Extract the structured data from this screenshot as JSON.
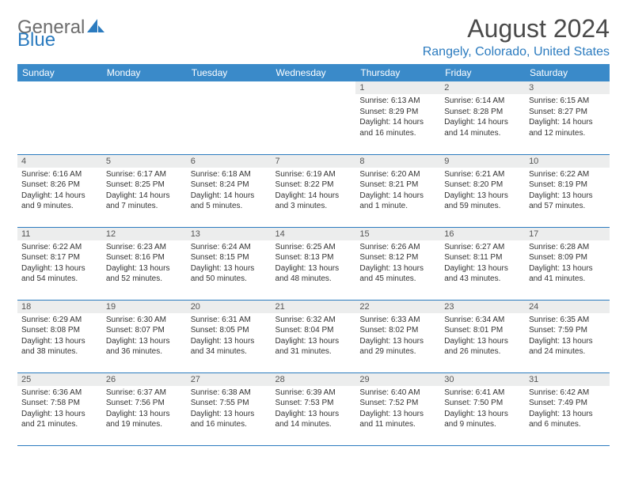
{
  "logo": {
    "line1": "General",
    "line2": "Blue"
  },
  "title": "August 2024",
  "location": "Rangely, Colorado, United States",
  "colors": {
    "header_bg": "#3a8ac9",
    "header_text": "#ffffff",
    "accent": "#2b7bbf",
    "logo_gray": "#6d6d6d",
    "daynum_bg": "#eceded",
    "body_text": "#333333",
    "title_text": "#4b4b4b"
  },
  "day_headers": [
    "Sunday",
    "Monday",
    "Tuesday",
    "Wednesday",
    "Thursday",
    "Friday",
    "Saturday"
  ],
  "weeks": [
    [
      null,
      null,
      null,
      null,
      {
        "n": "1",
        "sr": "6:13 AM",
        "ss": "8:29 PM",
        "dl": "14 hours and 16 minutes."
      },
      {
        "n": "2",
        "sr": "6:14 AM",
        "ss": "8:28 PM",
        "dl": "14 hours and 14 minutes."
      },
      {
        "n": "3",
        "sr": "6:15 AM",
        "ss": "8:27 PM",
        "dl": "14 hours and 12 minutes."
      }
    ],
    [
      {
        "n": "4",
        "sr": "6:16 AM",
        "ss": "8:26 PM",
        "dl": "14 hours and 9 minutes."
      },
      {
        "n": "5",
        "sr": "6:17 AM",
        "ss": "8:25 PM",
        "dl": "14 hours and 7 minutes."
      },
      {
        "n": "6",
        "sr": "6:18 AM",
        "ss": "8:24 PM",
        "dl": "14 hours and 5 minutes."
      },
      {
        "n": "7",
        "sr": "6:19 AM",
        "ss": "8:22 PM",
        "dl": "14 hours and 3 minutes."
      },
      {
        "n": "8",
        "sr": "6:20 AM",
        "ss": "8:21 PM",
        "dl": "14 hours and 1 minute."
      },
      {
        "n": "9",
        "sr": "6:21 AM",
        "ss": "8:20 PM",
        "dl": "13 hours and 59 minutes."
      },
      {
        "n": "10",
        "sr": "6:22 AM",
        "ss": "8:19 PM",
        "dl": "13 hours and 57 minutes."
      }
    ],
    [
      {
        "n": "11",
        "sr": "6:22 AM",
        "ss": "8:17 PM",
        "dl": "13 hours and 54 minutes."
      },
      {
        "n": "12",
        "sr": "6:23 AM",
        "ss": "8:16 PM",
        "dl": "13 hours and 52 minutes."
      },
      {
        "n": "13",
        "sr": "6:24 AM",
        "ss": "8:15 PM",
        "dl": "13 hours and 50 minutes."
      },
      {
        "n": "14",
        "sr": "6:25 AM",
        "ss": "8:13 PM",
        "dl": "13 hours and 48 minutes."
      },
      {
        "n": "15",
        "sr": "6:26 AM",
        "ss": "8:12 PM",
        "dl": "13 hours and 45 minutes."
      },
      {
        "n": "16",
        "sr": "6:27 AM",
        "ss": "8:11 PM",
        "dl": "13 hours and 43 minutes."
      },
      {
        "n": "17",
        "sr": "6:28 AM",
        "ss": "8:09 PM",
        "dl": "13 hours and 41 minutes."
      }
    ],
    [
      {
        "n": "18",
        "sr": "6:29 AM",
        "ss": "8:08 PM",
        "dl": "13 hours and 38 minutes."
      },
      {
        "n": "19",
        "sr": "6:30 AM",
        "ss": "8:07 PM",
        "dl": "13 hours and 36 minutes."
      },
      {
        "n": "20",
        "sr": "6:31 AM",
        "ss": "8:05 PM",
        "dl": "13 hours and 34 minutes."
      },
      {
        "n": "21",
        "sr": "6:32 AM",
        "ss": "8:04 PM",
        "dl": "13 hours and 31 minutes."
      },
      {
        "n": "22",
        "sr": "6:33 AM",
        "ss": "8:02 PM",
        "dl": "13 hours and 29 minutes."
      },
      {
        "n": "23",
        "sr": "6:34 AM",
        "ss": "8:01 PM",
        "dl": "13 hours and 26 minutes."
      },
      {
        "n": "24",
        "sr": "6:35 AM",
        "ss": "7:59 PM",
        "dl": "13 hours and 24 minutes."
      }
    ],
    [
      {
        "n": "25",
        "sr": "6:36 AM",
        "ss": "7:58 PM",
        "dl": "13 hours and 21 minutes."
      },
      {
        "n": "26",
        "sr": "6:37 AM",
        "ss": "7:56 PM",
        "dl": "13 hours and 19 minutes."
      },
      {
        "n": "27",
        "sr": "6:38 AM",
        "ss": "7:55 PM",
        "dl": "13 hours and 16 minutes."
      },
      {
        "n": "28",
        "sr": "6:39 AM",
        "ss": "7:53 PM",
        "dl": "13 hours and 14 minutes."
      },
      {
        "n": "29",
        "sr": "6:40 AM",
        "ss": "7:52 PM",
        "dl": "13 hours and 11 minutes."
      },
      {
        "n": "30",
        "sr": "6:41 AM",
        "ss": "7:50 PM",
        "dl": "13 hours and 9 minutes."
      },
      {
        "n": "31",
        "sr": "6:42 AM",
        "ss": "7:49 PM",
        "dl": "13 hours and 6 minutes."
      }
    ]
  ],
  "labels": {
    "sunrise": "Sunrise: ",
    "sunset": "Sunset: ",
    "daylight": "Daylight: "
  }
}
